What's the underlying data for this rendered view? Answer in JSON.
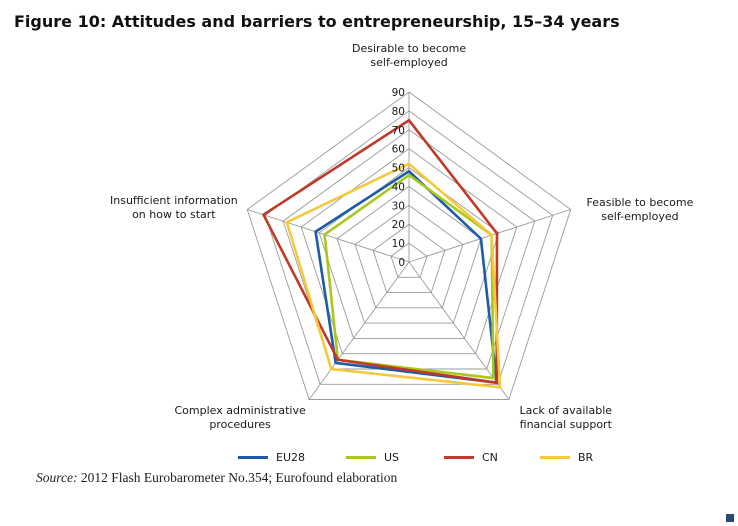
{
  "figure": {
    "title": "Figure 10: Attitudes and barriers to entrepreneurship, 15–34 years"
  },
  "source": {
    "prefix": "Source:",
    "text": " 2012 Flash Eurobarometer No.354; Eurofound elaboration"
  },
  "chart_data": {
    "type": "radar",
    "axes": [
      [
        "Desirable to become",
        "self-employed"
      ],
      [
        "Feasible to become",
        "self-employed"
      ],
      [
        "Lack of available",
        "financial support"
      ],
      [
        "Complex administrative",
        "procedures"
      ],
      [
        "Insufficient information",
        "on how to start"
      ]
    ],
    "ticks": [
      "0",
      "10",
      "20",
      "30",
      "40",
      "50",
      "60",
      "70",
      "80",
      "90"
    ],
    "rlim": [
      0,
      90
    ],
    "grid": true,
    "legend_position": "bottom",
    "series": [
      {
        "name": "EU28",
        "color": "#1f5aa6",
        "values": [
          48,
          40,
          79,
          66,
          52
        ]
      },
      {
        "name": "US",
        "color": "#a8c81e",
        "values": [
          46,
          46,
          76,
          64,
          47
        ]
      },
      {
        "name": "CN",
        "color": "#c0392b",
        "values": [
          75,
          49,
          79,
          64,
          81
        ]
      },
      {
        "name": "BR",
        "color": "#f5c93c",
        "values": [
          52,
          46,
          82,
          70,
          68
        ]
      }
    ]
  }
}
